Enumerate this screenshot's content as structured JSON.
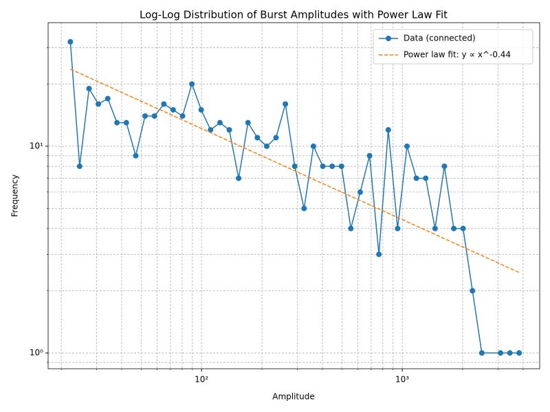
{
  "chart_data": {
    "type": "line",
    "title": "Log-Log Distribution of Burst Amplitudes with Power Law Fit",
    "xlabel": "Amplitude",
    "ylabel": "Frequency",
    "xscale": "log",
    "yscale": "log",
    "xlim": [
      17.2,
      4840
    ],
    "ylim": [
      0.839,
      39.6
    ],
    "xticks": [
      {
        "value": 100,
        "label": "10²"
      },
      {
        "value": 1000,
        "label": "10³"
      }
    ],
    "yticks": [
      {
        "value": 1,
        "label": "10⁰"
      },
      {
        "value": 10,
        "label": "10¹"
      }
    ],
    "xminorticks": [
      20,
      30,
      40,
      50,
      60,
      70,
      80,
      90,
      200,
      300,
      400,
      500,
      600,
      700,
      800,
      900,
      2000,
      3000,
      4000
    ],
    "yminorticks": [
      0.9,
      2,
      3,
      4,
      5,
      6,
      7,
      8,
      9,
      20,
      30
    ],
    "grid": true,
    "legend": "upper right",
    "series": [
      {
        "name": "Data (connected)",
        "color": "#1f77b4",
        "marker": "o",
        "linestyle": "solid",
        "x": [
          22.2,
          24.7,
          27.5,
          30.6,
          34.1,
          37.9,
          42.2,
          47.0,
          52.3,
          58.3,
          64.9,
          72.2,
          80.4,
          89.5,
          99.6,
          110.9,
          123.5,
          137.5,
          153.0,
          170.4,
          189.7,
          211.2,
          235.0,
          261.7,
          291.3,
          324.3,
          361.1,
          402.0,
          447.5,
          498.2,
          554.6,
          617.5,
          687.4,
          765.3,
          852.0,
          948.4,
          1056,
          1176,
          1309,
          1457,
          1622,
          1806,
          2010,
          2238,
          2492,
          3088,
          3438,
          3827
        ],
        "values": [
          32,
          8,
          19,
          16,
          17,
          13,
          13,
          9,
          14,
          14,
          16,
          15,
          14,
          20,
          15,
          12,
          13,
          12,
          7,
          13,
          11,
          10,
          11,
          16,
          8,
          5,
          10,
          8,
          8,
          8,
          4,
          6,
          9,
          3,
          12,
          4,
          10,
          7,
          7,
          4,
          8,
          4,
          4,
          2,
          1,
          1,
          1,
          1
        ]
      },
      {
        "name": "Power law fit: y ∝ x^-0.44",
        "color": "#ff7f0e",
        "marker": "none",
        "linestyle": "dashed",
        "x": [
          22.2,
          3827
        ],
        "values": [
          23.6,
          2.45
        ]
      }
    ]
  }
}
